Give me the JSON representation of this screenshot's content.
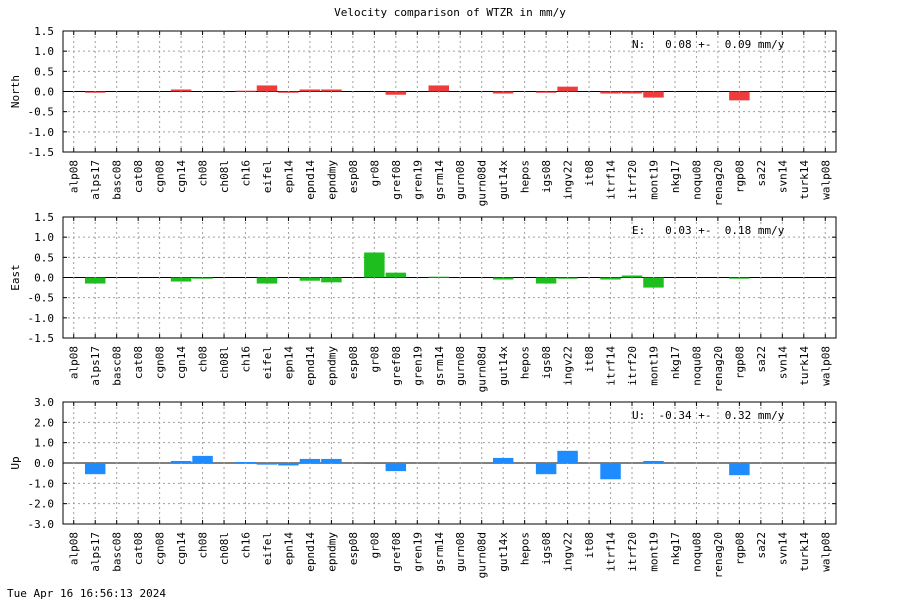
{
  "title": "Velocity comparison of WTZR in mm/y",
  "footer": "Tue Apr 16 16:56:13 2024",
  "chart_data": [
    {
      "type": "bar",
      "ylabel": "North",
      "color": "#ee3b3b",
      "ylim": [
        -1.5,
        1.5
      ],
      "yticks": [
        "1.5",
        "1.0",
        "0.5",
        "0.0",
        "-0.5",
        "-1.0",
        "-1.5"
      ],
      "ytick_values": [
        1.5,
        1.0,
        0.5,
        0.0,
        -0.5,
        -1.0,
        -1.5
      ],
      "grid": true,
      "annotation": "N:   0.08 +-  0.09 mm/y",
      "categories": [
        "alp08",
        "alps17",
        "basc08",
        "cat08",
        "cgn08",
        "cgn14",
        "ch08",
        "ch08l",
        "ch16",
        "eifel",
        "epn14",
        "epnd14",
        "epndmy",
        "esp08",
        "gr08",
        "gref08",
        "gren19",
        "gsrm14",
        "gurn08",
        "gurn08d",
        "gut14x",
        "hepos",
        "igs08",
        "ingv22",
        "it08",
        "itrf14",
        "itrf20",
        "mont19",
        "nkg17",
        "noqu08",
        "renag20",
        "rgp08",
        "sa22",
        "svn14",
        "turk14",
        "walp08"
      ],
      "values": [
        null,
        -0.03,
        null,
        null,
        null,
        0.05,
        null,
        null,
        0.02,
        0.15,
        -0.03,
        0.05,
        0.05,
        null,
        null,
        -0.08,
        null,
        0.15,
        null,
        null,
        -0.05,
        null,
        -0.03,
        0.12,
        null,
        -0.05,
        -0.05,
        -0.15,
        null,
        null,
        null,
        -0.22,
        null,
        null,
        null,
        null
      ]
    },
    {
      "type": "bar",
      "ylabel": "East",
      "color": "#1ebe1e",
      "ylim": [
        -1.5,
        1.5
      ],
      "yticks": [
        "1.5",
        "1.0",
        "0.5",
        "0.0",
        "-0.5",
        "-1.0",
        "-1.5"
      ],
      "ytick_values": [
        1.5,
        1.0,
        0.5,
        0.0,
        -0.5,
        -1.0,
        -1.5
      ],
      "grid": true,
      "annotation": "E:   0.03 +-  0.18 mm/y",
      "categories": [
        "alp08",
        "alps17",
        "basc08",
        "cat08",
        "cgn08",
        "cgn14",
        "ch08",
        "ch08l",
        "ch16",
        "eifel",
        "epn14",
        "epnd14",
        "epndmy",
        "esp08",
        "gr08",
        "gref08",
        "gren19",
        "gsrm14",
        "gurn08",
        "gurn08d",
        "gut14x",
        "hepos",
        "igs08",
        "ingv22",
        "it08",
        "itrf14",
        "itrf20",
        "mont19",
        "nkg17",
        "noqu08",
        "renag20",
        "rgp08",
        "sa22",
        "svn14",
        "turk14",
        "walp08"
      ],
      "values": [
        null,
        -0.15,
        null,
        null,
        null,
        -0.1,
        -0.03,
        null,
        null,
        -0.15,
        null,
        -0.08,
        -0.12,
        null,
        0.62,
        0.12,
        null,
        0.02,
        null,
        null,
        -0.05,
        null,
        -0.15,
        -0.03,
        null,
        -0.05,
        0.05,
        -0.25,
        null,
        null,
        null,
        -0.03,
        null,
        null,
        null,
        null
      ]
    },
    {
      "type": "bar",
      "ylabel": "Up",
      "color": "#1e8cff",
      "ylim": [
        -3.0,
        3.0
      ],
      "yticks": [
        "3.0",
        "2.0",
        "1.0",
        "0.0",
        "-1.0",
        "-2.0",
        "-3.0"
      ],
      "ytick_values": [
        3.0,
        2.0,
        1.0,
        0.0,
        -1.0,
        -2.0,
        -3.0
      ],
      "grid": true,
      "annotation": "U:  -0.34 +-  0.32 mm/y",
      "categories": [
        "alp08",
        "alps17",
        "basc08",
        "cat08",
        "cgn08",
        "cgn14",
        "ch08",
        "ch08l",
        "ch16",
        "eifel",
        "epn14",
        "epnd14",
        "epndmy",
        "esp08",
        "gr08",
        "gref08",
        "gren19",
        "gsrm14",
        "gurn08",
        "gurn08d",
        "gut14x",
        "hepos",
        "igs08",
        "ingv22",
        "it08",
        "itrf14",
        "itrf20",
        "mont19",
        "nkg17",
        "noqu08",
        "renag20",
        "rgp08",
        "sa22",
        "svn14",
        "turk14",
        "walp08"
      ],
      "values": [
        null,
        -0.55,
        null,
        null,
        null,
        0.1,
        0.35,
        null,
        0.05,
        -0.08,
        -0.12,
        0.2,
        0.2,
        null,
        -0.05,
        -0.4,
        null,
        null,
        null,
        null,
        0.25,
        null,
        -0.55,
        0.6,
        null,
        -0.8,
        null,
        0.1,
        null,
        null,
        null,
        -0.6,
        null,
        null,
        null,
        null
      ]
    }
  ]
}
